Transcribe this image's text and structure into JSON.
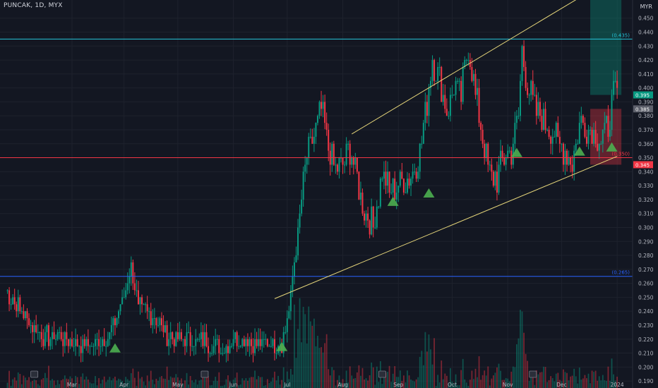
{
  "header": {
    "ticker": "PUNCAK, 1D, MYX",
    "currency": "MYR"
  },
  "chart_data": {
    "type": "candlestick",
    "ylim": [
      0.185,
      0.463
    ],
    "y_ticks": [
      "0.450",
      "0.440",
      "0.430",
      "0.420",
      "0.410",
      "0.400",
      "0.390",
      "0.380",
      "0.370",
      "0.360",
      "0.350",
      "0.340",
      "0.330",
      "0.320",
      "0.310",
      "0.300",
      "0.290",
      "0.280",
      "0.270",
      "0.260",
      "0.250",
      "0.240",
      "0.230",
      "0.220",
      "0.210",
      "0.200",
      "0.190"
    ],
    "x_labels": [
      {
        "label": "Mar",
        "day": 37
      },
      {
        "label": "Apr",
        "day": 66
      },
      {
        "label": "May",
        "day": 96
      },
      {
        "label": "Jun",
        "day": 127
      },
      {
        "label": "Jul",
        "day": 157
      },
      {
        "label": "Aug",
        "day": 188
      },
      {
        "label": "Sep",
        "day": 219
      },
      {
        "label": "Oct",
        "day": 249
      },
      {
        "label": "Nov",
        "day": 280
      },
      {
        "label": "Dec",
        "day": 310
      },
      {
        "label": "2024",
        "day": 341
      }
    ],
    "horizontal_levels": [
      {
        "value": 0.435,
        "label": "(0.435)",
        "color": "#26c6da"
      },
      {
        "value": 0.35,
        "label": "(0.350)",
        "color": "#f23645"
      },
      {
        "value": 0.265,
        "label": "(0.265)",
        "color": "#2962ff"
      }
    ],
    "price_tags": [
      {
        "value": 0.395,
        "label": "0.395",
        "color": "#089981"
      },
      {
        "value": 0.385,
        "label": "0.385",
        "color": "#5d606b"
      },
      {
        "value": 0.345,
        "label": "0.345",
        "color": "#f23645"
      }
    ],
    "channel": [
      {
        "from": {
          "day": 193,
          "price": 0.367
        },
        "to": {
          "day": 323,
          "price": 0.467
        }
      },
      {
        "from": {
          "day": 150,
          "price": 0.249
        },
        "to": {
          "day": 341,
          "price": 0.351
        }
      }
    ],
    "signals": [
      {
        "day": 61,
        "price": 0.213
      },
      {
        "day": 154,
        "price": 0.214
      },
      {
        "day": 216,
        "price": 0.318
      },
      {
        "day": 236,
        "price": 0.324
      },
      {
        "day": 285,
        "price": 0.353
      },
      {
        "day": 320,
        "price": 0.354
      },
      {
        "day": 338,
        "price": 0.357
      }
    ],
    "earnings_markers": [
      16,
      111,
      210,
      294
    ],
    "waypoints": [
      [
        0,
        0.255
      ],
      [
        10,
        0.238
      ],
      [
        20,
        0.222
      ],
      [
        30,
        0.222
      ],
      [
        40,
        0.218
      ],
      [
        50,
        0.215
      ],
      [
        58,
        0.224
      ],
      [
        62,
        0.238
      ],
      [
        66,
        0.25
      ],
      [
        70,
        0.272
      ],
      [
        74,
        0.243
      ],
      [
        78,
        0.24
      ],
      [
        84,
        0.235
      ],
      [
        90,
        0.222
      ],
      [
        100,
        0.22
      ],
      [
        110,
        0.22
      ],
      [
        116,
        0.215
      ],
      [
        120,
        0.212
      ],
      [
        126,
        0.22
      ],
      [
        134,
        0.22
      ],
      [
        142,
        0.215
      ],
      [
        148,
        0.218
      ],
      [
        154,
        0.216
      ],
      [
        158,
        0.24
      ],
      [
        162,
        0.285
      ],
      [
        165,
        0.32
      ],
      [
        168,
        0.35
      ],
      [
        172,
        0.365
      ],
      [
        176,
        0.385
      ],
      [
        180,
        0.355
      ],
      [
        184,
        0.343
      ],
      [
        188,
        0.345
      ],
      [
        192,
        0.356
      ],
      [
        196,
        0.335
      ],
      [
        200,
        0.312
      ],
      [
        205,
        0.3
      ],
      [
        210,
        0.34
      ],
      [
        214,
        0.325
      ],
      [
        218,
        0.33
      ],
      [
        222,
        0.332
      ],
      [
        227,
        0.338
      ],
      [
        231,
        0.354
      ],
      [
        235,
        0.39
      ],
      [
        238,
        0.42
      ],
      [
        242,
        0.405
      ],
      [
        246,
        0.382
      ],
      [
        250,
        0.402
      ],
      [
        254,
        0.395
      ],
      [
        258,
        0.43
      ],
      [
        262,
        0.395
      ],
      [
        266,
        0.365
      ],
      [
        270,
        0.338
      ],
      [
        274,
        0.335
      ],
      [
        278,
        0.35
      ],
      [
        282,
        0.355
      ],
      [
        286,
        0.38
      ],
      [
        288,
        0.43
      ],
      [
        290,
        0.41
      ],
      [
        293,
        0.395
      ],
      [
        296,
        0.383
      ],
      [
        300,
        0.375
      ],
      [
        304,
        0.372
      ],
      [
        308,
        0.36
      ],
      [
        312,
        0.355
      ],
      [
        316,
        0.345
      ],
      [
        320,
        0.375
      ],
      [
        324,
        0.372
      ],
      [
        328,
        0.368
      ],
      [
        332,
        0.362
      ],
      [
        336,
        0.372
      ],
      [
        339,
        0.395
      ],
      [
        341,
        0.395
      ]
    ]
  }
}
